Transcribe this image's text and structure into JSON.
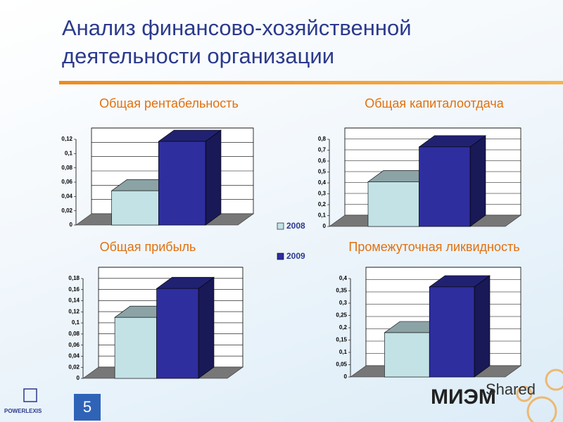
{
  "slide": {
    "title": "Анализ финансово-хозяйственной деятельности организации",
    "page_number": "5",
    "brand": "POWERLEXIS",
    "watermark": [
      "МИЭМ",
      "Shared"
    ]
  },
  "legend": [
    {
      "name": "2008",
      "color": "#c2e2e6"
    },
    {
      "name": "2009",
      "color": "#2e2e9e"
    }
  ],
  "chart_data": [
    {
      "type": "bar3d",
      "title": "Общая рентабельность",
      "values": [
        0.048,
        0.117
      ],
      "ylim": [
        0,
        0.12
      ],
      "yticks": [
        0,
        {
          "value": 0.02,
          "label": "0,02"
        },
        {
          "value": 0.04,
          "label": "0,04"
        },
        {
          "value": 0.06,
          "label": "0,06"
        },
        {
          "value": 0.08,
          "label": "0,08"
        },
        {
          "value": 0.1,
          "label": "0,1"
        },
        {
          "value": 0.12,
          "label": "0,12"
        }
      ],
      "grid": true
    },
    {
      "type": "bar3d",
      "title": "Общая капиталоотдача",
      "values": [
        0.41,
        0.73
      ],
      "ylim": [
        0,
        0.8
      ],
      "yticks": [
        0,
        {
          "value": 0.1,
          "label": "0,1"
        },
        {
          "value": 0.2,
          "label": "0,2"
        },
        {
          "value": 0.3,
          "label": "0,3"
        },
        {
          "value": 0.4,
          "label": "0,4"
        },
        {
          "value": 0.5,
          "label": "0,5"
        },
        {
          "value": 0.6,
          "label": "0,6"
        },
        {
          "value": 0.7,
          "label": "0,7"
        },
        {
          "value": 0.8,
          "label": "0,8"
        }
      ],
      "grid": true
    },
    {
      "type": "bar3d",
      "title": "Общая прибыль",
      "values": [
        0.11,
        0.162
      ],
      "ylim": [
        0,
        0.18
      ],
      "yticks": [
        0,
        {
          "value": 0.02,
          "label": "0,02"
        },
        {
          "value": 0.04,
          "label": "0,04"
        },
        {
          "value": 0.06,
          "label": "0,06"
        },
        {
          "value": 0.08,
          "label": "0,08"
        },
        {
          "value": 0.1,
          "label": "0,1"
        },
        {
          "value": 0.12,
          "label": "0,12"
        },
        {
          "value": 0.14,
          "label": "0,14"
        },
        {
          "value": 0.16,
          "label": "0,16"
        },
        {
          "value": 0.18,
          "label": "0,18"
        }
      ],
      "grid": true
    },
    {
      "type": "bar3d",
      "title": "Промежуточная ликвидность",
      "values": [
        0.18,
        0.366
      ],
      "ylim": [
        0,
        0.4
      ],
      "yticks": [
        0,
        {
          "value": 0.05,
          "label": "0,05"
        },
        {
          "value": 0.1,
          "label": "0,1"
        },
        {
          "value": 0.15,
          "label": "0,15"
        },
        {
          "value": 0.2,
          "label": "0,2"
        },
        {
          "value": 0.25,
          "label": "0,25"
        },
        {
          "value": 0.3,
          "label": "0,3"
        },
        {
          "value": 0.35,
          "label": "0,35"
        },
        {
          "value": 0.4,
          "label": "0,4"
        }
      ],
      "grid": true
    }
  ]
}
